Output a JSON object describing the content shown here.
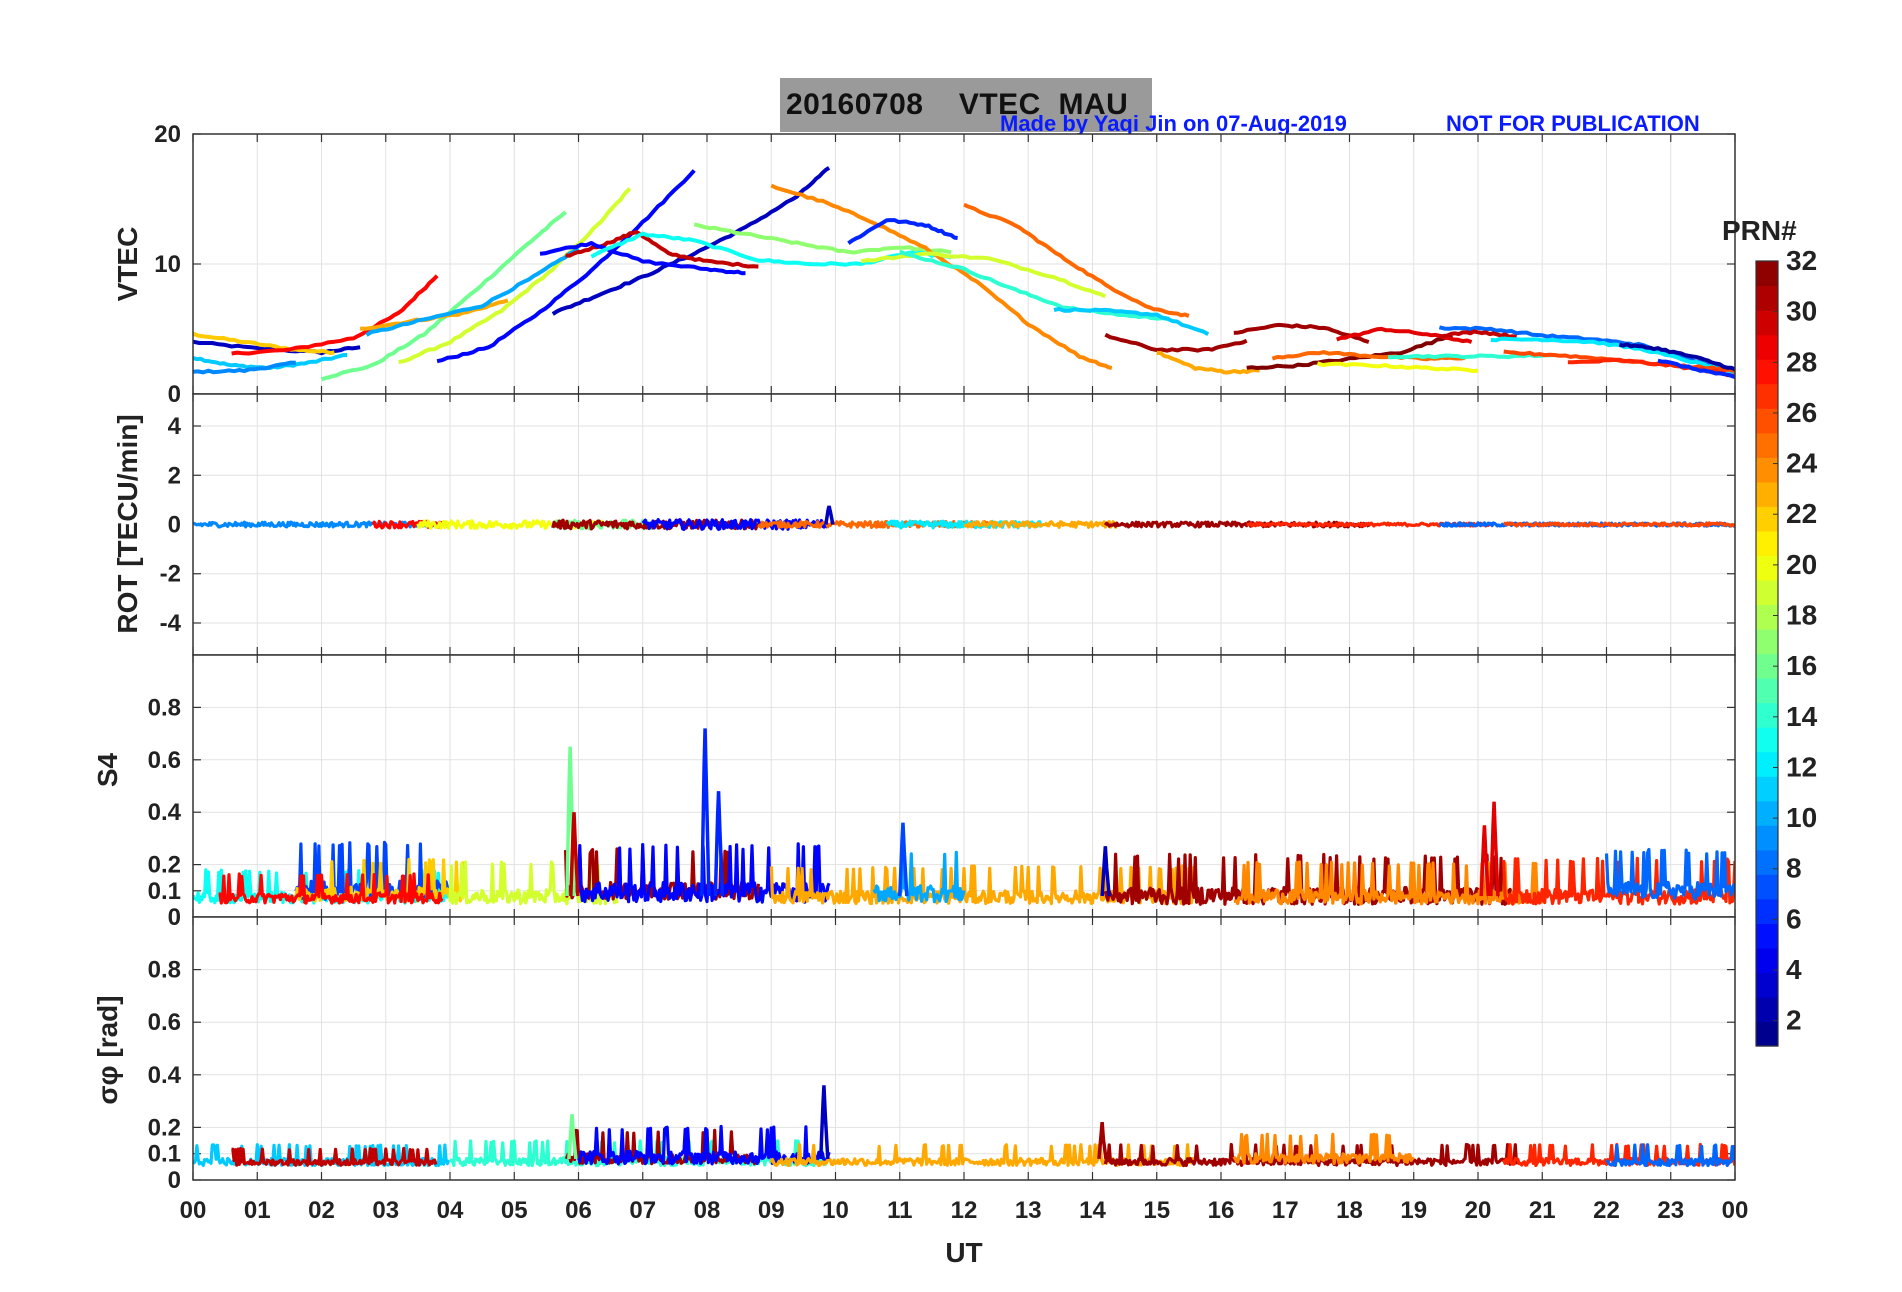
{
  "header": {
    "date": "20160708",
    "quantity": "VTEC",
    "station": "MAU",
    "credit": "Made by Yaqi Jin on 07-Aug-2019",
    "stamp": "NOT FOR PUBLICATION"
  },
  "chart_data": {
    "type": "line",
    "xlabel": "UT",
    "xlim": [
      0,
      24
    ],
    "xticks": [
      "00",
      "01",
      "02",
      "03",
      "04",
      "05",
      "06",
      "07",
      "08",
      "09",
      "10",
      "11",
      "12",
      "13",
      "14",
      "15",
      "16",
      "17",
      "18",
      "19",
      "20",
      "21",
      "22",
      "23",
      "00"
    ],
    "colorbar": {
      "label": "PRN#",
      "range": [
        1,
        32
      ],
      "ticks": [
        "2",
        "4",
        "6",
        "8",
        "10",
        "12",
        "14",
        "16",
        "18",
        "20",
        "22",
        "24",
        "26",
        "28",
        "30",
        "32"
      ],
      "colormap": "jet"
    },
    "panels": [
      {
        "id": "vtec",
        "ylabel": "VTEC",
        "ylim": [
          0,
          20
        ],
        "yticks": [
          "0",
          "10",
          "20"
        ],
        "series": [
          {
            "prn": 3,
            "x": [
              0,
              1,
              2,
              2.6
            ],
            "y": [
              4.0,
              3.5,
              3.2,
              3.6
            ]
          },
          {
            "prn": 22,
            "x": [
              0,
              0.8,
              1.6,
              2.2
            ],
            "y": [
              4.6,
              4.0,
              3.4,
              3.2
            ]
          },
          {
            "prn": 11,
            "x": [
              0,
              0.6,
              1.2,
              1.8,
              2.4
            ],
            "y": [
              2.8,
              2.2,
              2.0,
              2.4,
              3.0
            ]
          },
          {
            "prn": 9,
            "x": [
              0,
              0.8,
              1.6
            ],
            "y": [
              1.7,
              1.8,
              2.4
            ]
          },
          {
            "prn": 28,
            "x": [
              0.6,
              1.5,
              2.5,
              3.2,
              3.8
            ],
            "y": [
              3.1,
              3.4,
              4.3,
              6.2,
              9.1
            ]
          },
          {
            "prn": 16,
            "x": [
              2,
              2.8,
              3.6,
              4.4,
              5.2,
              5.8
            ],
            "y": [
              1.2,
              2.2,
              4.6,
              8.0,
              11.5,
              14.0
            ]
          },
          {
            "prn": 19,
            "x": [
              3.2,
              4,
              4.8,
              5.6,
              6.3,
              6.8
            ],
            "y": [
              2.4,
              4.0,
              6.4,
              9.6,
              13.0,
              15.8
            ]
          },
          {
            "prn": 23,
            "x": [
              2.6,
              3.4,
              4.2,
              4.9
            ],
            "y": [
              5.0,
              5.6,
              6.2,
              7.2
            ]
          },
          {
            "prn": 10,
            "x": [
              2.7,
              3.5,
              4.5,
              5.3,
              6.0
            ],
            "y": [
              4.6,
              5.6,
              6.8,
              9.0,
              11.2
            ]
          },
          {
            "prn": 5,
            "x": [
              3.8,
              4.6,
              5.4,
              6.2,
              7,
              7.8
            ],
            "y": [
              2.5,
              3.6,
              6.3,
              9.5,
              13.2,
              17.2
            ]
          },
          {
            "prn": 3,
            "x": [
              5.6,
              6.3,
              7,
              7.8,
              8.6,
              9.4,
              9.9
            ],
            "y": [
              6.2,
              7.6,
              9.0,
              10.8,
              12.8,
              15.2,
              17.4
            ]
          },
          {
            "prn": 30,
            "x": [
              5.8,
              6.4,
              6.9,
              7.4,
              8,
              8.8
            ],
            "y": [
              10.6,
              11.5,
              12.5,
              10.8,
              10.2,
              9.8
            ]
          },
          {
            "prn": 5,
            "x": [
              5.4,
              6.2,
              7,
              8,
              8.6
            ],
            "y": [
              10.8,
              11.6,
              10.2,
              9.6,
              9.3
            ]
          },
          {
            "prn": 13,
            "x": [
              6.2,
              7,
              7.8,
              8.8,
              9.6,
              10.4,
              11.2,
              11.8
            ],
            "y": [
              10.6,
              12.3,
              11.8,
              10.3,
              10.0,
              10.0,
              10.9,
              10.5
            ]
          },
          {
            "prn": 17,
            "x": [
              7.8,
              8.6,
              9.4,
              10.2,
              11,
              11.8
            ],
            "y": [
              13.0,
              12.3,
              11.6,
              10.9,
              11.3,
              10.9
            ]
          },
          {
            "prn": 24,
            "x": [
              9,
              9.8,
              10.6,
              11.4,
              12.2,
              13,
              13.8,
              14.3
            ],
            "y": [
              16.0,
              14.8,
              13.2,
              11.2,
              8.6,
              5.4,
              2.9,
              2.0
            ]
          },
          {
            "prn": 6,
            "x": [
              10.2,
              10.8,
              11.4,
              11.9
            ],
            "y": [
              11.6,
              13.4,
              13.0,
              12.0
            ]
          },
          {
            "prn": 19,
            "x": [
              10.4,
              11.4,
              12.4,
              13.4,
              14.2
            ],
            "y": [
              10.2,
              10.8,
              10.4,
              9.0,
              7.5
            ]
          },
          {
            "prn": 14,
            "x": [
              11,
              12,
              12.8,
              13.6,
              14.6,
              15.2
            ],
            "y": [
              10.9,
              9.6,
              8.0,
              6.6,
              6.0,
              5.8
            ]
          },
          {
            "prn": 25,
            "x": [
              12,
              12.8,
              13.5,
              14.2,
              14.9,
              15.5
            ],
            "y": [
              14.5,
              13.0,
              10.6,
              8.4,
              6.6,
              6.0
            ]
          },
          {
            "prn": 11,
            "x": [
              13.4,
              14.2,
              15,
              15.8
            ],
            "y": [
              6.5,
              6.4,
              6.1,
              4.6
            ]
          },
          {
            "prn": 31,
            "x": [
              14.2,
              15,
              15.8,
              16.4
            ],
            "y": [
              4.5,
              3.4,
              3.4,
              4.1
            ]
          },
          {
            "prn": 23,
            "x": [
              15,
              15.6,
              16.1,
              16.6
            ],
            "y": [
              3.2,
              2.0,
              1.7,
              1.8
            ]
          },
          {
            "prn": 31,
            "x": [
              16.2,
              16.9,
              17.6,
              18.3
            ],
            "y": [
              4.7,
              5.3,
              5.1,
              4.0
            ]
          },
          {
            "prn": 32,
            "x": [
              16.4,
              17.2,
              18,
              18.8,
              19.6
            ],
            "y": [
              2.0,
              2.2,
              2.7,
              3.2,
              4.5
            ]
          },
          {
            "prn": 25,
            "x": [
              16.8,
              17.6,
              18.4,
              19.2,
              19.8
            ],
            "y": [
              2.8,
              3.2,
              2.9,
              2.7,
              2.8
            ]
          },
          {
            "prn": 29,
            "x": [
              17.8,
              18.5,
              19.2,
              19.9
            ],
            "y": [
              4.2,
              5.0,
              4.6,
              4.0
            ]
          },
          {
            "prn": 20,
            "x": [
              17.5,
              18.4,
              19.2,
              20
            ],
            "y": [
              2.3,
              2.2,
              2.0,
              1.8
            ]
          },
          {
            "prn": 14,
            "x": [
              18.6,
              19.5,
              20.4,
              21.2
            ],
            "y": [
              2.9,
              2.9,
              2.9,
              3.0
            ]
          },
          {
            "prn": 8,
            "x": [
              19.4,
              20.2,
              21,
              21.8,
              22.5,
              23.3,
              24
            ],
            "y": [
              5.1,
              5.0,
              4.5,
              4.2,
              3.8,
              2.6,
              1.9
            ]
          },
          {
            "prn": 30,
            "x": [
              19.4,
              20,
              20.6
            ],
            "y": [
              4.5,
              4.8,
              4.4
            ]
          },
          {
            "prn": 12,
            "x": [
              20.2,
              21,
              21.8,
              22.6,
              23.4,
              24
            ],
            "y": [
              4.2,
              4.2,
              4.0,
              3.4,
              2.4,
              1.6
            ]
          },
          {
            "prn": 26,
            "x": [
              20.4,
              21.2,
              22,
              22.8,
              23.6,
              24
            ],
            "y": [
              3.2,
              3.0,
              2.7,
              2.3,
              2.0,
              1.8
            ]
          },
          {
            "prn": 2,
            "x": [
              22.2,
              22.8,
              23.4,
              24
            ],
            "y": [
              3.8,
              3.5,
              2.8,
              1.9
            ]
          },
          {
            "prn": 27,
            "x": [
              21.4,
              22.2,
              23,
              23.7,
              24
            ],
            "y": [
              2.4,
              2.6,
              2.2,
              1.7,
              1.4
            ]
          },
          {
            "prn": 6,
            "x": [
              22.8,
              23.4,
              24
            ],
            "y": [
              2.6,
              1.9,
              1.3
            ]
          }
        ]
      },
      {
        "id": "rot",
        "ylabel": "ROT [TECU/min]",
        "ylim": [
          -5.3,
          5.3
        ],
        "yticks": [
          "-4",
          "-2",
          "0",
          "2",
          "4"
        ],
        "baseline": 0,
        "segments": [
          {
            "prn": 9,
            "x0": 0,
            "x1": 4,
            "amp": 0.1
          },
          {
            "prn": 28,
            "x0": 2.8,
            "x1": 3.9,
            "amp": 0.14
          },
          {
            "prn": 20,
            "x0": 3.5,
            "x1": 6.4,
            "amp": 0.16
          },
          {
            "prn": 16,
            "x0": 5.6,
            "x1": 7.2,
            "amp": 0.18
          },
          {
            "prn": 31,
            "x0": 5.6,
            "x1": 8.8,
            "amp": 0.18
          },
          {
            "prn": 5,
            "x0": 7,
            "x1": 9.9,
            "amp": 0.2
          },
          {
            "prn": 25,
            "x0": 8.8,
            "x1": 12.4,
            "amp": 0.12
          },
          {
            "prn": 12,
            "x0": 10.8,
            "x1": 13.2,
            "amp": 0.14
          },
          {
            "prn": 23,
            "x0": 12,
            "x1": 14.4,
            "amp": 0.12
          },
          {
            "prn": 31,
            "x0": 14.2,
            "x1": 18.3,
            "amp": 0.1
          },
          {
            "prn": 27,
            "x0": 16.4,
            "x1": 20.2,
            "amp": 0.06
          },
          {
            "prn": 8,
            "x0": 19.4,
            "x1": 24,
            "amp": 0.07
          },
          {
            "prn": 26,
            "x0": 20.4,
            "x1": 24,
            "amp": 0.06
          }
        ],
        "spikes": [
          {
            "prn": 3,
            "x": 9.9,
            "y": 0.75
          }
        ]
      },
      {
        "id": "s4",
        "ylabel": "S4",
        "ylim": [
          0,
          1
        ],
        "yticks": [
          "0",
          "0.1",
          "0.2",
          "0.4",
          "0.6",
          "0.8"
        ],
        "segments": [
          {
            "prn": 13,
            "x0": 0,
            "x1": 4,
            "base": 0.06,
            "amp": 0.08
          },
          {
            "prn": 7,
            "x0": 1.6,
            "x1": 4,
            "base": 0.08,
            "amp": 0.14
          },
          {
            "prn": 22,
            "x0": 1.6,
            "x1": 4.2,
            "base": 0.07,
            "amp": 0.1
          },
          {
            "prn": 28,
            "x0": 0.4,
            "x1": 3.9,
            "base": 0.06,
            "amp": 0.07
          },
          {
            "prn": 19,
            "x0": 4,
            "x1": 6.6,
            "base": 0.06,
            "amp": 0.1
          },
          {
            "prn": 31,
            "x0": 5.8,
            "x1": 8.8,
            "base": 0.08,
            "amp": 0.12
          },
          {
            "prn": 5,
            "x0": 6,
            "x1": 9.9,
            "base": 0.07,
            "amp": 0.14
          },
          {
            "prn": 23,
            "x0": 9,
            "x1": 15.6,
            "base": 0.06,
            "amp": 0.09
          },
          {
            "prn": 10,
            "x0": 10.6,
            "x1": 12,
            "base": 0.07,
            "amp": 0.12
          },
          {
            "prn": 31,
            "x0": 14.2,
            "x1": 20.6,
            "base": 0.06,
            "amp": 0.12
          },
          {
            "prn": 24,
            "x0": 16.2,
            "x1": 21,
            "base": 0.06,
            "amp": 0.1
          },
          {
            "prn": 27,
            "x0": 20.4,
            "x1": 24,
            "base": 0.06,
            "amp": 0.11
          },
          {
            "prn": 8,
            "x0": 22,
            "x1": 24,
            "base": 0.08,
            "amp": 0.12
          }
        ],
        "spikes": [
          {
            "prn": 16,
            "x": 5.87,
            "y": 0.65
          },
          {
            "prn": 30,
            "x": 5.93,
            "y": 0.4
          },
          {
            "prn": 6,
            "x": 7.97,
            "y": 0.72
          },
          {
            "prn": 6,
            "x": 8.18,
            "y": 0.48
          },
          {
            "prn": 29,
            "x": 20.1,
            "y": 0.35
          },
          {
            "prn": 29,
            "x": 20.25,
            "y": 0.44
          },
          {
            "prn": 7,
            "x": 11.05,
            "y": 0.36
          },
          {
            "prn": 3,
            "x": 14.2,
            "y": 0.27
          }
        ]
      },
      {
        "id": "sigma",
        "ylabel": "σφ [rad]",
        "ylim": [
          0,
          1
        ],
        "yticks": [
          "0",
          "0.1",
          "0.2",
          "0.4",
          "0.6",
          "0.8"
        ],
        "segments": [
          {
            "prn": 11,
            "x0": 0,
            "x1": 4,
            "base": 0.06,
            "amp": 0.05
          },
          {
            "prn": 30,
            "x0": 0.6,
            "x1": 3.8,
            "base": 0.06,
            "amp": 0.04
          },
          {
            "prn": 14,
            "x0": 4,
            "x1": 9.9,
            "base": 0.06,
            "amp": 0.06
          },
          {
            "prn": 31,
            "x0": 5.8,
            "x1": 8.8,
            "base": 0.07,
            "amp": 0.08
          },
          {
            "prn": 5,
            "x0": 6,
            "x1": 9.9,
            "base": 0.07,
            "amp": 0.09
          },
          {
            "prn": 23,
            "x0": 9,
            "x1": 15.6,
            "base": 0.06,
            "amp": 0.05
          },
          {
            "prn": 31,
            "x0": 14.2,
            "x1": 20.6,
            "base": 0.06,
            "amp": 0.05
          },
          {
            "prn": 24,
            "x0": 16.2,
            "x1": 19,
            "base": 0.07,
            "amp": 0.07
          },
          {
            "prn": 27,
            "x0": 20.4,
            "x1": 24,
            "base": 0.06,
            "amp": 0.05
          },
          {
            "prn": 8,
            "x0": 22,
            "x1": 24,
            "base": 0.06,
            "amp": 0.05
          }
        ],
        "spikes": [
          {
            "prn": 3,
            "x": 9.82,
            "y": 0.36
          },
          {
            "prn": 31,
            "x": 14.15,
            "y": 0.22
          },
          {
            "prn": 16,
            "x": 5.9,
            "y": 0.25
          }
        ]
      }
    ]
  }
}
